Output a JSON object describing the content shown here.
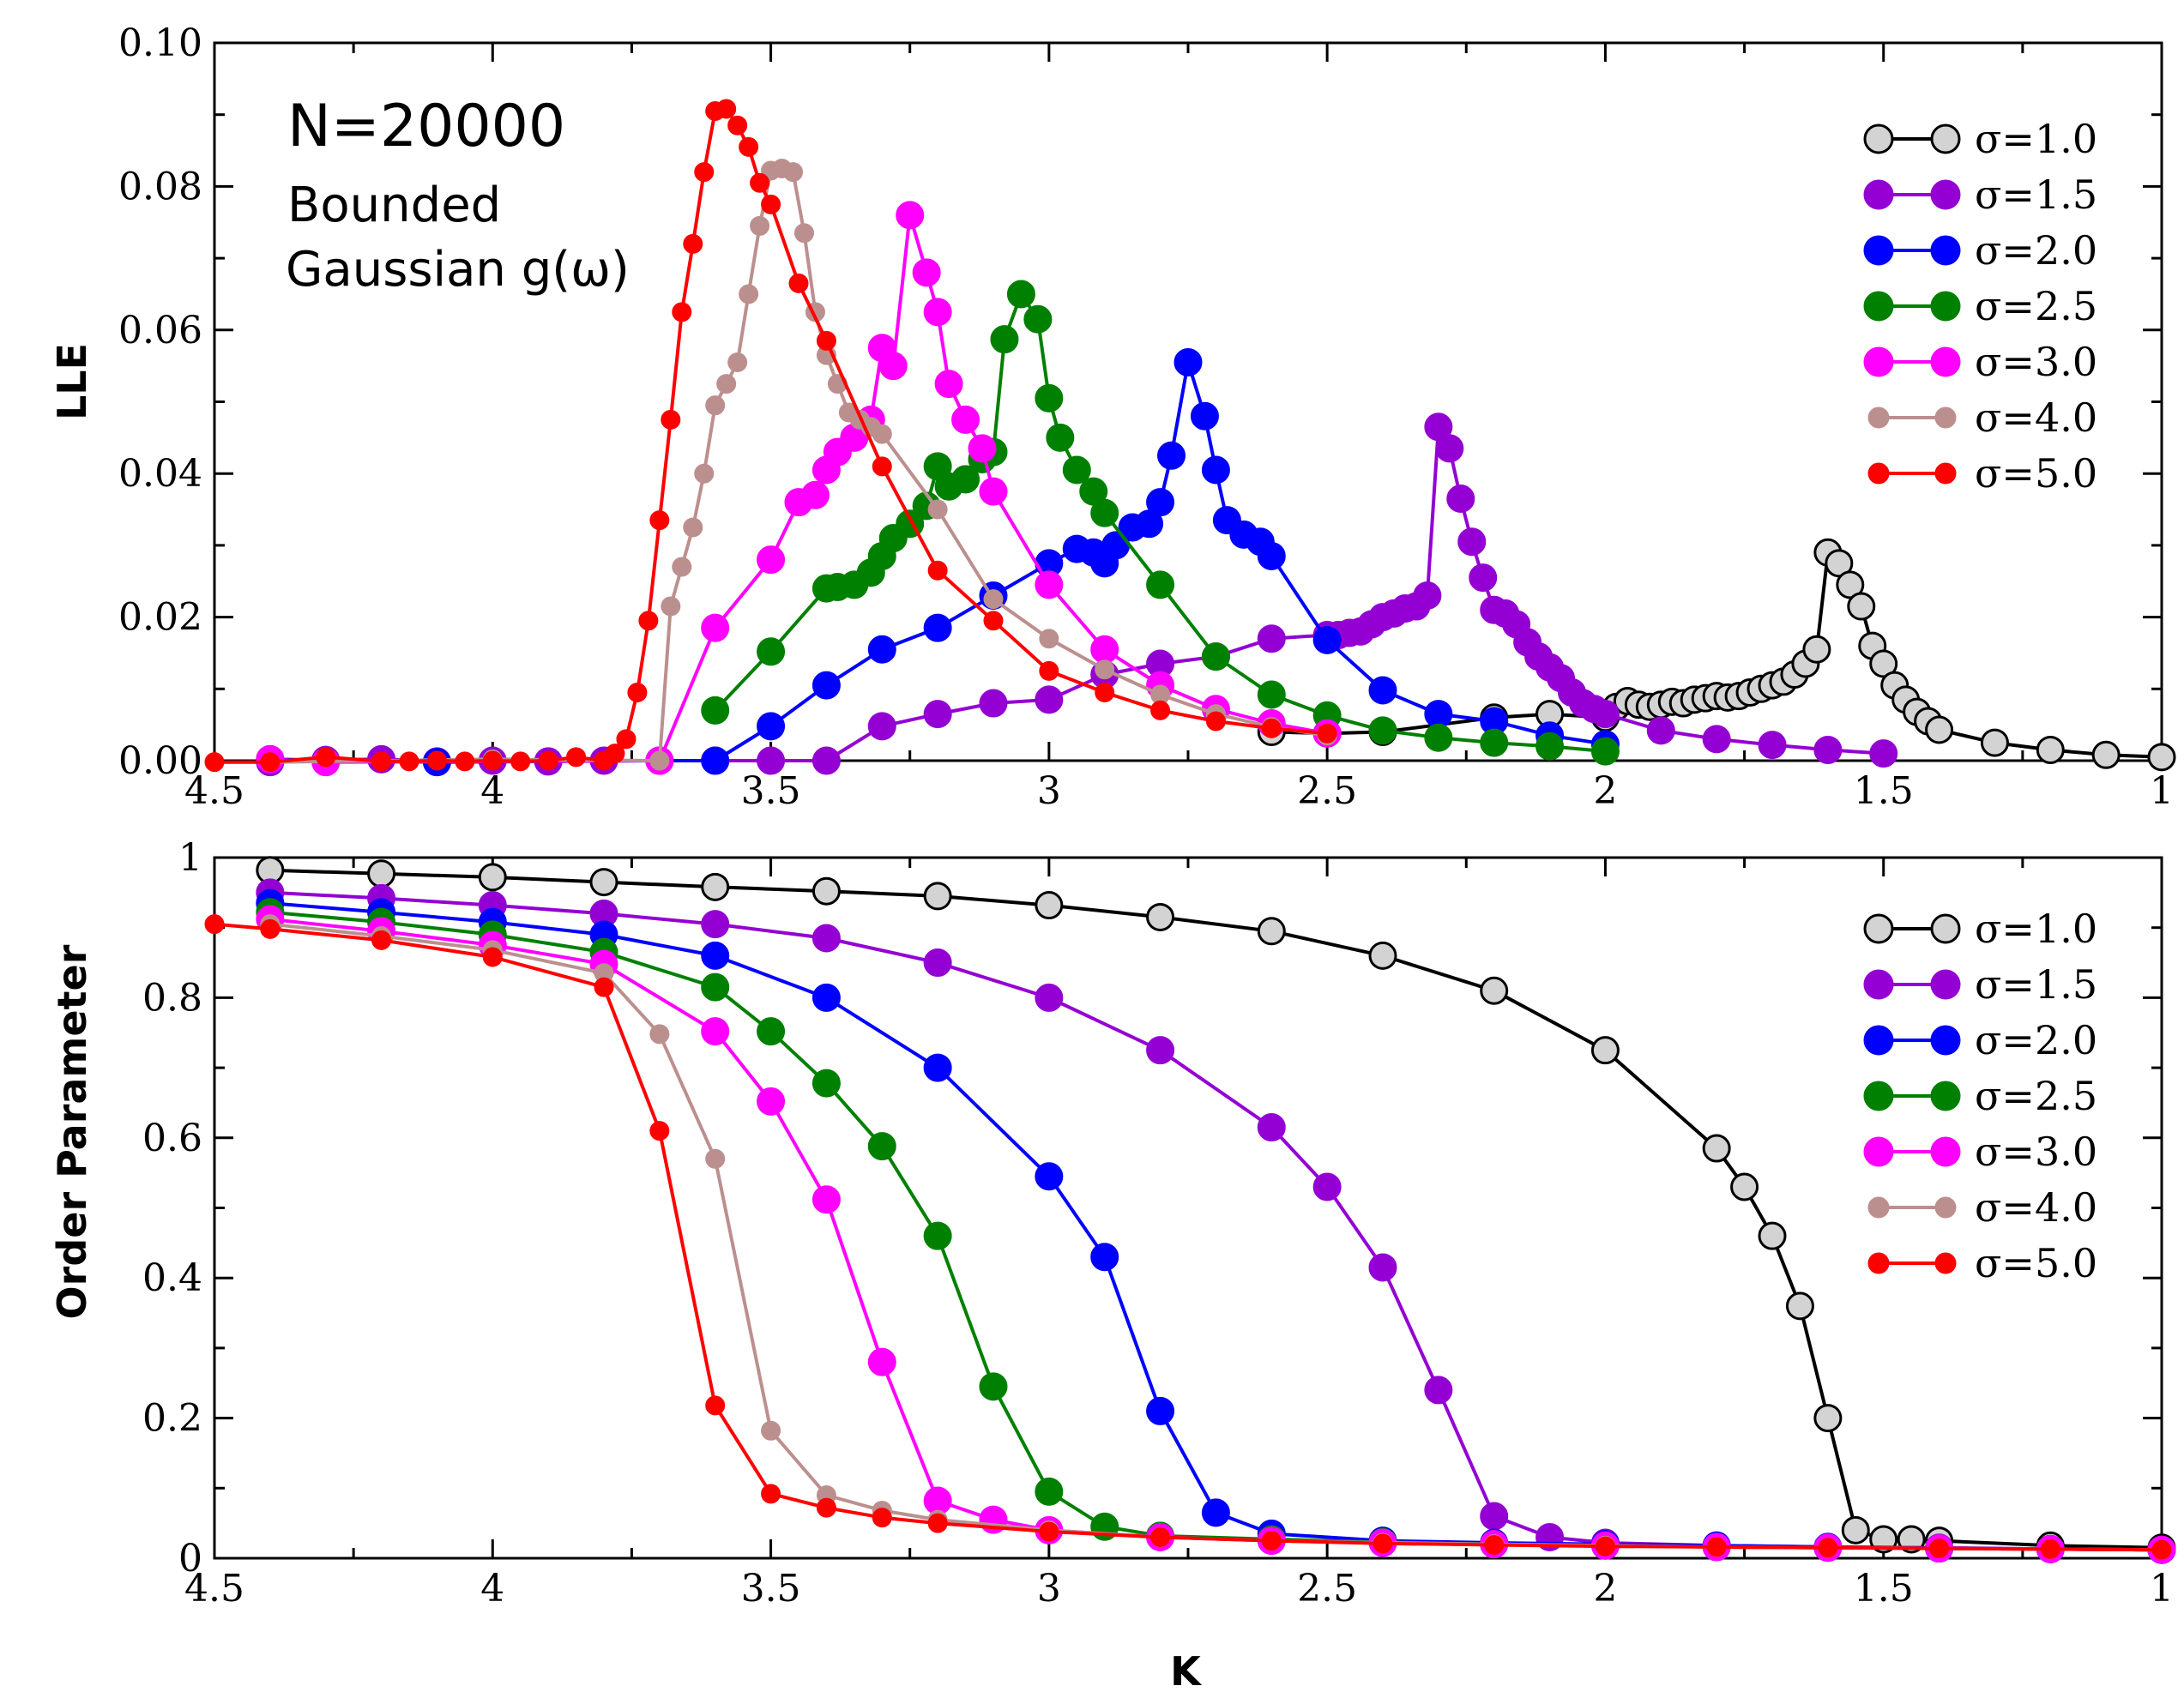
{
  "chart_data": [
    {
      "type": "line",
      "id": "lle",
      "xlabel": "",
      "ylabel": "LLE",
      "xlim": [
        4.5,
        1
      ],
      "ylim": [
        0,
        0.1
      ],
      "xticks": [
        4.5,
        4,
        3.5,
        3,
        2.5,
        2,
        1.5,
        1
      ],
      "xtick_labels": [
        "4.5",
        "4",
        "3.5",
        "3",
        "2.5",
        "2",
        "1.5",
        "1"
      ],
      "yticks": [
        0,
        0.02,
        0.04,
        0.06,
        0.08,
        0.1
      ],
      "ytick_labels": [
        "0.00",
        "0.02",
        "0.04",
        "0.06",
        "0.08",
        "0.10"
      ],
      "annotations": [
        "N=20000",
        "Bounded",
        "Gaussian g(ω)"
      ],
      "legend_position": "top-right",
      "series": [
        {
          "name": "σ=1.0",
          "color": "#000000",
          "fill": "#d3d3d3",
          "marker": "large",
          "x": [
            2.6,
            2.5,
            2.4,
            2.2,
            2.1,
            2.0,
            1.98,
            1.96,
            1.94,
            1.92,
            1.9,
            1.88,
            1.86,
            1.84,
            1.82,
            1.8,
            1.78,
            1.76,
            1.74,
            1.72,
            1.7,
            1.68,
            1.66,
            1.64,
            1.62,
            1.6,
            1.58,
            1.56,
            1.54,
            1.52,
            1.5,
            1.48,
            1.46,
            1.44,
            1.42,
            1.4,
            1.3,
            1.2,
            1.1,
            1.0
          ],
          "y": [
            0.004,
            0.0038,
            0.004,
            0.006,
            0.0065,
            0.006,
            0.0075,
            0.0083,
            0.0078,
            0.0075,
            0.0078,
            0.0082,
            0.008,
            0.0085,
            0.0087,
            0.009,
            0.0088,
            0.009,
            0.0095,
            0.01,
            0.0105,
            0.011,
            0.012,
            0.0135,
            0.0155,
            0.029,
            0.0275,
            0.0245,
            0.0215,
            0.016,
            0.0135,
            0.0105,
            0.0085,
            0.0068,
            0.0055,
            0.0043,
            0.0025,
            0.0015,
            0.0008,
            0.0005
          ]
        },
        {
          "name": "σ=1.5",
          "color": "#9400d3",
          "fill": "#9400d3",
          "marker": "large",
          "x": [
            4.4,
            4.3,
            4.2,
            4.1,
            4.0,
            3.9,
            3.8,
            3.7,
            3.6,
            3.5,
            3.4,
            3.3,
            3.2,
            3.1,
            3.0,
            2.9,
            2.8,
            2.7,
            2.6,
            2.5,
            2.48,
            2.46,
            2.44,
            2.42,
            2.4,
            2.38,
            2.36,
            2.34,
            2.32,
            2.3,
            2.28,
            2.26,
            2.24,
            2.22,
            2.2,
            2.18,
            2.16,
            2.14,
            2.12,
            2.1,
            2.08,
            2.06,
            2.04,
            2.02,
            2.0,
            1.9,
            1.8,
            1.7,
            1.6,
            1.5
          ],
          "y": [
            -0.0002,
            0.0001,
            0.0002,
            -0.0001,
            0.0,
            -0.0001,
            0.0,
            0.0,
            0.0,
            0.0,
            0.0,
            0.0048,
            0.0065,
            0.008,
            0.0085,
            0.012,
            0.0135,
            0.0145,
            0.017,
            0.0175,
            0.0175,
            0.0178,
            0.018,
            0.019,
            0.02,
            0.0205,
            0.0212,
            0.0215,
            0.023,
            0.0465,
            0.0435,
            0.0365,
            0.0305,
            0.0255,
            0.021,
            0.0205,
            0.019,
            0.0165,
            0.0145,
            0.013,
            0.0115,
            0.0095,
            0.008,
            0.0072,
            0.0065,
            0.0042,
            0.003,
            0.0022,
            0.0015,
            0.001
          ]
        },
        {
          "name": "σ=2.0",
          "color": "#0000ff",
          "fill": "#0000ff",
          "marker": "large",
          "x": [
            4.4,
            4.1,
            3.7,
            3.6,
            3.5,
            3.4,
            3.3,
            3.2,
            3.1,
            3.0,
            2.95,
            2.92,
            2.9,
            2.88,
            2.85,
            2.82,
            2.8,
            2.78,
            2.75,
            2.72,
            2.7,
            2.68,
            2.65,
            2.62,
            2.6,
            2.5,
            2.4,
            2.3,
            2.2,
            2.1,
            2.0
          ],
          "y": [
            0.0002,
            -0.0002,
            0.0,
            0.0,
            0.0048,
            0.0105,
            0.0155,
            0.0185,
            0.023,
            0.0275,
            0.0295,
            0.029,
            0.0275,
            0.03,
            0.0325,
            0.033,
            0.036,
            0.0425,
            0.0555,
            0.048,
            0.0405,
            0.0335,
            0.0315,
            0.0305,
            0.0285,
            0.0168,
            0.0098,
            0.0065,
            0.0055,
            0.0035,
            0.0023
          ]
        },
        {
          "name": "σ=2.5",
          "color": "#008000",
          "fill": "#008000",
          "marker": "large",
          "x": [
            3.6,
            3.5,
            3.4,
            3.38,
            3.35,
            3.32,
            3.3,
            3.28,
            3.25,
            3.22,
            3.2,
            3.18,
            3.15,
            3.12,
            3.1,
            3.08,
            3.05,
            3.02,
            3.0,
            2.98,
            2.95,
            2.92,
            2.9,
            2.8,
            2.7,
            2.6,
            2.5,
            2.4,
            2.3,
            2.2,
            2.1,
            2.0
          ],
          "y": [
            0.007,
            0.0152,
            0.024,
            0.0242,
            0.0245,
            0.0262,
            0.0285,
            0.031,
            0.033,
            0.0355,
            0.041,
            0.0382,
            0.0392,
            0.042,
            0.043,
            0.0587,
            0.065,
            0.0615,
            0.0505,
            0.045,
            0.0405,
            0.0375,
            0.0345,
            0.0245,
            0.0145,
            0.0092,
            0.0063,
            0.0042,
            0.0032,
            0.0025,
            0.002,
            0.0013
          ]
        },
        {
          "name": "σ=3.0",
          "color": "#ff00ff",
          "fill": "#ff00ff",
          "marker": "large",
          "x": [
            4.4,
            4.3,
            3.7,
            3.6,
            3.5,
            3.45,
            3.42,
            3.4,
            3.38,
            3.35,
            3.32,
            3.3,
            3.28,
            3.25,
            3.22,
            3.2,
            3.18,
            3.15,
            3.12,
            3.1,
            3.0,
            2.9,
            2.8,
            2.7,
            2.6,
            2.5
          ],
          "y": [
            0.0002,
            -0.0002,
            0.0,
            0.0185,
            0.028,
            0.036,
            0.037,
            0.0405,
            0.043,
            0.045,
            0.0475,
            0.0575,
            0.055,
            0.076,
            0.068,
            0.0625,
            0.0525,
            0.0475,
            0.0435,
            0.0375,
            0.0245,
            0.0155,
            0.0105,
            0.0072,
            0.0052,
            0.0038
          ]
        },
        {
          "name": "σ=4.0",
          "color": "#bc8f8f",
          "fill": "#bc8f8f",
          "marker": "small",
          "x": [
            4.4,
            4.0,
            3.7,
            3.68,
            3.66,
            3.64,
            3.62,
            3.6,
            3.58,
            3.56,
            3.54,
            3.52,
            3.5,
            3.48,
            3.46,
            3.44,
            3.42,
            3.4,
            3.38,
            3.36,
            3.34,
            3.32,
            3.3,
            3.2,
            3.1,
            3.0,
            2.9,
            2.8,
            2.7,
            2.6,
            2.5
          ],
          "y": [
            -0.0002,
            0.0002,
            0.0,
            0.0215,
            0.027,
            0.0325,
            0.04,
            0.0495,
            0.0525,
            0.0555,
            0.065,
            0.0745,
            0.0822,
            0.0825,
            0.082,
            0.0735,
            0.0625,
            0.0565,
            0.0525,
            0.0485,
            0.0475,
            0.0465,
            0.0455,
            0.035,
            0.0225,
            0.017,
            0.0127,
            0.0092,
            0.0065,
            0.0047,
            0.0035
          ]
        },
        {
          "name": "σ=5.0",
          "color": "#ff0000",
          "fill": "#ff0000",
          "marker": "small",
          "x": [
            4.5,
            4.4,
            4.3,
            4.2,
            4.15,
            4.1,
            4.05,
            4.0,
            3.95,
            3.9,
            3.85,
            3.8,
            3.78,
            3.76,
            3.74,
            3.72,
            3.7,
            3.68,
            3.66,
            3.64,
            3.62,
            3.6,
            3.58,
            3.56,
            3.54,
            3.52,
            3.5,
            3.45,
            3.4,
            3.3,
            3.2,
            3.1,
            3.0,
            2.9,
            2.8,
            2.7,
            2.6,
            2.5
          ],
          "y": [
            -0.0002,
            -0.0002,
            0.0005,
            -0.0001,
            -0.0001,
            0.0,
            -0.0001,
            0.0,
            -0.0001,
            0.0,
            0.0005,
            0.0,
            0.001,
            0.003,
            0.0095,
            0.0195,
            0.0335,
            0.0475,
            0.0625,
            0.072,
            0.082,
            0.0905,
            0.0908,
            0.0885,
            0.0855,
            0.0805,
            0.0775,
            0.0665,
            0.0585,
            0.041,
            0.0265,
            0.0195,
            0.0125,
            0.0095,
            0.007,
            0.0055,
            0.0045,
            0.0038
          ]
        }
      ]
    },
    {
      "type": "line",
      "id": "order",
      "xlabel": "K",
      "ylabel": "Order Parameter",
      "xlim": [
        4.5,
        1
      ],
      "ylim": [
        0,
        1
      ],
      "xticks": [
        4.5,
        4,
        3.5,
        3,
        2.5,
        2,
        1.5,
        1
      ],
      "xtick_labels": [
        "4.5",
        "4",
        "3.5",
        "3",
        "2.5",
        "2",
        "1.5",
        "1"
      ],
      "yticks": [
        0,
        0.2,
        0.4,
        0.6,
        0.8,
        1
      ],
      "ytick_labels": [
        "0",
        "0.2",
        "0.4",
        "0.6",
        "0.8",
        "1"
      ],
      "legend_position": "top-right",
      "series": [
        {
          "name": "σ=1.0",
          "color": "#000000",
          "fill": "#d3d3d3",
          "marker": "large",
          "x": [
            4.4,
            4.2,
            4.0,
            3.8,
            3.6,
            3.4,
            3.2,
            3.0,
            2.8,
            2.6,
            2.4,
            2.2,
            2.0,
            1.8,
            1.75,
            1.7,
            1.65,
            1.6,
            1.55,
            1.5,
            1.45,
            1.4,
            1.2,
            1.0
          ],
          "y": [
            0.982,
            0.977,
            0.972,
            0.965,
            0.958,
            0.952,
            0.945,
            0.932,
            0.915,
            0.895,
            0.86,
            0.81,
            0.725,
            0.585,
            0.53,
            0.46,
            0.36,
            0.2,
            0.04,
            0.027,
            0.027,
            0.025,
            0.018,
            0.015
          ]
        },
        {
          "name": "σ=1.5",
          "color": "#9400d3",
          "fill": "#9400d3",
          "marker": "large",
          "x": [
            4.4,
            4.2,
            4.0,
            3.8,
            3.6,
            3.4,
            3.2,
            3.0,
            2.8,
            2.6,
            2.5,
            2.4,
            2.3,
            2.2,
            2.1,
            2.0,
            1.8,
            1.6,
            1.4,
            1.2,
            1.0
          ],
          "y": [
            0.95,
            0.942,
            0.932,
            0.92,
            0.905,
            0.885,
            0.85,
            0.8,
            0.725,
            0.615,
            0.53,
            0.415,
            0.24,
            0.06,
            0.03,
            0.022,
            0.018,
            0.016,
            0.015,
            0.013,
            0.012
          ]
        },
        {
          "name": "σ=2.0",
          "color": "#0000ff",
          "fill": "#0000ff",
          "marker": "large",
          "x": [
            4.4,
            4.2,
            4.0,
            3.8,
            3.6,
            3.4,
            3.2,
            3.0,
            2.9,
            2.8,
            2.7,
            2.6,
            2.4,
            2.2,
            2.0,
            1.8,
            1.6,
            1.4,
            1.2,
            1.0
          ],
          "y": [
            0.935,
            0.922,
            0.908,
            0.89,
            0.86,
            0.8,
            0.7,
            0.545,
            0.43,
            0.21,
            0.065,
            0.035,
            0.025,
            0.022,
            0.02,
            0.018,
            0.016,
            0.014,
            0.013,
            0.012
          ]
        },
        {
          "name": "σ=2.5",
          "color": "#008000",
          "fill": "#008000",
          "marker": "large",
          "x": [
            4.4,
            4.2,
            4.0,
            3.8,
            3.6,
            3.5,
            3.4,
            3.3,
            3.2,
            3.1,
            3.0,
            2.9,
            2.8,
            2.6,
            2.4,
            2.2,
            2.0,
            1.8,
            1.6,
            1.4,
            1.2,
            1.0
          ],
          "y": [
            0.922,
            0.908,
            0.89,
            0.865,
            0.815,
            0.752,
            0.678,
            0.588,
            0.46,
            0.245,
            0.095,
            0.045,
            0.032,
            0.027,
            0.023,
            0.02,
            0.018,
            0.016,
            0.015,
            0.014,
            0.013,
            0.012
          ]
        },
        {
          "name": "σ=3.0",
          "color": "#ff00ff",
          "fill": "#ff00ff",
          "marker": "large",
          "x": [
            4.4,
            4.2,
            4.0,
            3.8,
            3.6,
            3.5,
            3.4,
            3.3,
            3.2,
            3.1,
            3.0,
            2.8,
            2.6,
            2.4,
            2.2,
            2.0,
            1.8,
            1.6,
            1.4,
            1.2,
            1.0
          ],
          "y": [
            0.912,
            0.895,
            0.875,
            0.848,
            0.752,
            0.652,
            0.512,
            0.28,
            0.082,
            0.055,
            0.04,
            0.03,
            0.025,
            0.022,
            0.02,
            0.018,
            0.016,
            0.015,
            0.014,
            0.013,
            0.012
          ]
        },
        {
          "name": "σ=4.0",
          "color": "#bc8f8f",
          "fill": "#bc8f8f",
          "marker": "small",
          "x": [
            4.4,
            4.2,
            4.0,
            3.8,
            3.7,
            3.6,
            3.5,
            3.4,
            3.3,
            3.2,
            3.0,
            2.8,
            2.6,
            2.4,
            2.2,
            2.0,
            1.8,
            1.6,
            1.4,
            1.2,
            1.0
          ],
          "y": [
            0.905,
            0.888,
            0.868,
            0.835,
            0.748,
            0.57,
            0.182,
            0.09,
            0.068,
            0.055,
            0.04,
            0.03,
            0.025,
            0.022,
            0.02,
            0.018,
            0.016,
            0.015,
            0.014,
            0.013,
            0.012
          ]
        },
        {
          "name": "σ=5.0",
          "color": "#ff0000",
          "fill": "#ff0000",
          "marker": "small",
          "x": [
            4.5,
            4.4,
            4.2,
            4.0,
            3.8,
            3.7,
            3.6,
            3.5,
            3.4,
            3.3,
            3.2,
            3.0,
            2.8,
            2.6,
            2.4,
            2.2,
            2.0,
            1.8,
            1.6,
            1.4,
            1.2,
            1.0
          ],
          "y": [
            0.905,
            0.898,
            0.882,
            0.858,
            0.815,
            0.61,
            0.218,
            0.092,
            0.072,
            0.058,
            0.05,
            0.038,
            0.03,
            0.025,
            0.021,
            0.019,
            0.017,
            0.016,
            0.015,
            0.014,
            0.013,
            0.012
          ]
        }
      ]
    }
  ]
}
